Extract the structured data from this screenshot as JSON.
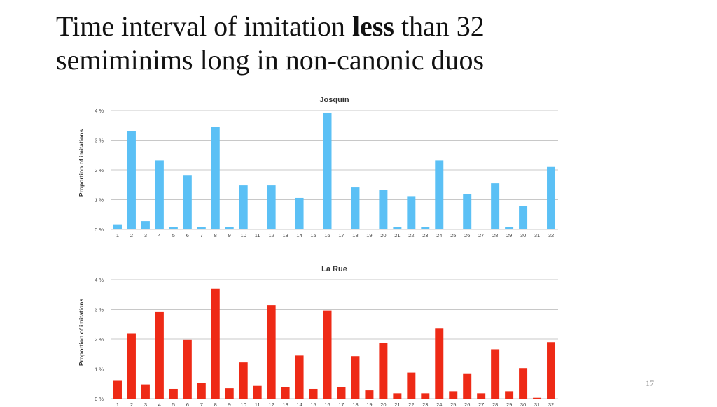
{
  "slide": {
    "title_part1": "Time interval of imitation ",
    "title_bold": "less",
    "title_part2": " than 32",
    "title_line2": "semiminims long in non-canonic duos",
    "page_number": "17"
  },
  "chart_data": [
    {
      "type": "bar",
      "title": "Josquin",
      "ylabel": "Proportion of imitations",
      "xlabel": "",
      "ylim": [
        0,
        4
      ],
      "yticks": [
        "0 %",
        "1 %",
        "2 %",
        "3 %",
        "4 %"
      ],
      "grid": true,
      "color": "#5bc0f5",
      "categories": [
        "1",
        "2",
        "3",
        "4",
        "5",
        "6",
        "7",
        "8",
        "9",
        "10",
        "11",
        "12",
        "13",
        "14",
        "15",
        "16",
        "17",
        "18",
        "19",
        "20",
        "21",
        "22",
        "23",
        "24",
        "25",
        "26",
        "27",
        "28",
        "29",
        "30",
        "31",
        "32"
      ],
      "values": [
        0.15,
        3.3,
        0.28,
        2.32,
        0.08,
        1.83,
        0.08,
        3.45,
        0.08,
        1.48,
        0,
        1.48,
        0,
        1.06,
        0,
        3.93,
        0,
        1.41,
        0,
        1.34,
        0.08,
        1.12,
        0.08,
        2.32,
        0,
        1.2,
        0,
        1.55,
        0.08,
        0.78,
        0,
        2.1
      ]
    },
    {
      "type": "bar",
      "title": "La Rue",
      "ylabel": "Proportion of imitations",
      "xlabel": "",
      "ylim": [
        0,
        4
      ],
      "yticks": [
        "0 %",
        "1 %",
        "2 %",
        "3 %",
        "4 %"
      ],
      "grid": true,
      "color": "#ee2a16",
      "categories": [
        "1",
        "2",
        "3",
        "4",
        "5",
        "6",
        "7",
        "8",
        "9",
        "10",
        "11",
        "12",
        "13",
        "14",
        "15",
        "16",
        "17",
        "18",
        "19",
        "20",
        "21",
        "22",
        "23",
        "24",
        "25",
        "26",
        "27",
        "28",
        "29",
        "30",
        "31",
        "32"
      ],
      "values": [
        0.6,
        2.2,
        0.48,
        2.92,
        0.33,
        1.98,
        0.52,
        3.7,
        0.35,
        1.22,
        0.43,
        3.15,
        0.4,
        1.45,
        0.33,
        2.95,
        0.4,
        1.43,
        0.28,
        1.86,
        0.18,
        0.88,
        0.18,
        2.37,
        0.25,
        0.83,
        0.18,
        1.66,
        0.25,
        1.03,
        0.03,
        1.9
      ]
    }
  ]
}
